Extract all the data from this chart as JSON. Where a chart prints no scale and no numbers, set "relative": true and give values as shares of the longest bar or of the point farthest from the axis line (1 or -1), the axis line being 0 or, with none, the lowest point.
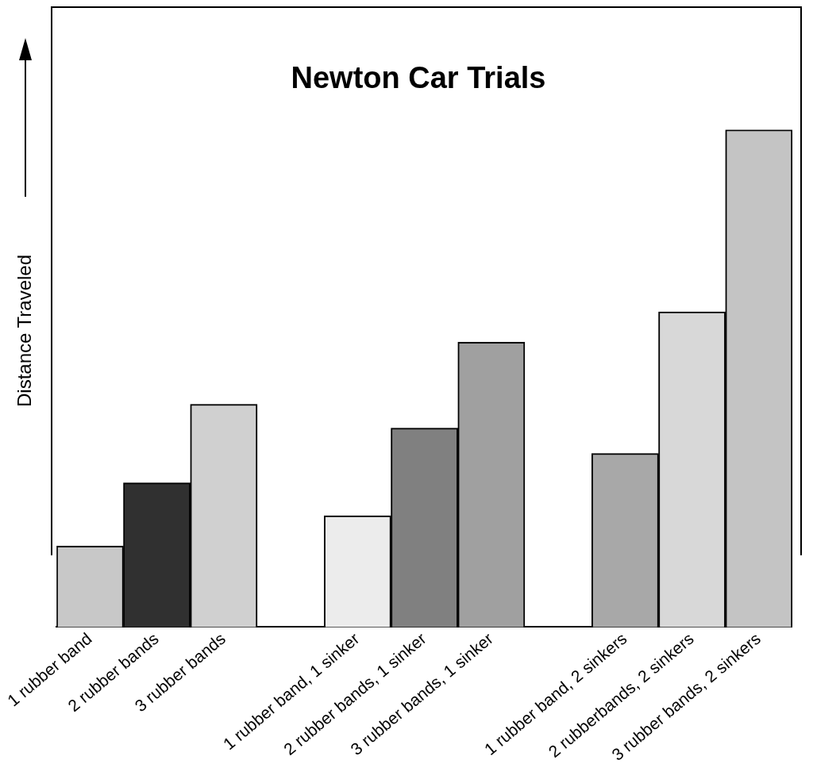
{
  "chart_data": {
    "type": "bar",
    "title": "Newton Car Trials",
    "ylabel": "Distance Traveled",
    "relative": true,
    "categories": [
      "1 rubber band",
      "2 rubber bands",
      "3 rubber bands",
      null,
      "1 rubber band, 1 sinker",
      "2 rubber bands, 1 sinker",
      "3 rubber bands, 1 sinker",
      null,
      "1 rubber band, 2 sinkers",
      "2 rubberbands, 2 sinkers",
      "3 rubber bands, 2 sinkers"
    ],
    "values": [
      0.163,
      0.29,
      0.448,
      null,
      0.224,
      0.4,
      0.573,
      null,
      0.349,
      0.634,
      1
    ],
    "colors": [
      "#c8c8c8",
      "#303030",
      "#d0d0d0",
      "#ffffff",
      "#ececec",
      "#808080",
      "#a0a0a0",
      "#ffffff",
      "#a8a8a8",
      "#d8d8d8",
      "#c4c4c4"
    ],
    "grid": false,
    "legend": false
  }
}
